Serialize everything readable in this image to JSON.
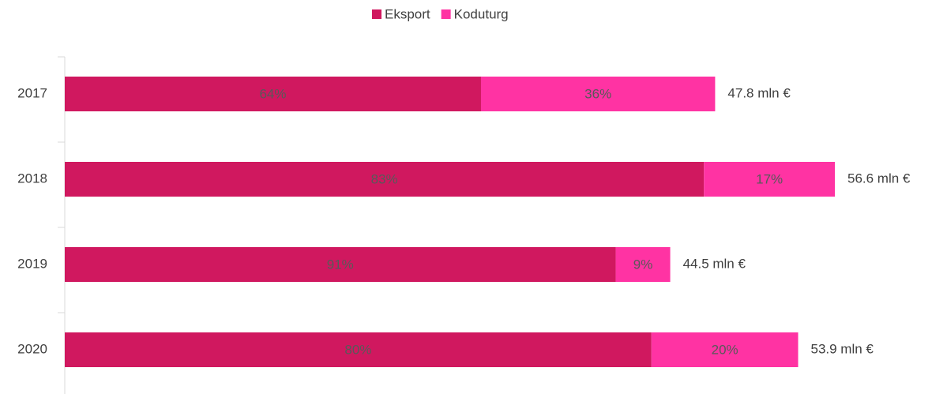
{
  "chart_data": {
    "type": "bar",
    "orientation": "horizontal",
    "stacked": true,
    "categories": [
      "2017",
      "2018",
      "2019",
      "2020"
    ],
    "series": [
      {
        "name": "Eksport",
        "color": "#d0185f",
        "values": [
          64,
          83,
          91,
          80
        ],
        "value_labels": [
          "64%",
          "83%",
          "91%",
          "80%"
        ]
      },
      {
        "name": "Koduturg",
        "color": "#ff33a3",
        "values": [
          36,
          17,
          9,
          20
        ],
        "value_labels": [
          "36%",
          "17%",
          "9%",
          "20%"
        ]
      }
    ],
    "totals": {
      "values": [
        47.8,
        56.6,
        44.5,
        53.9
      ],
      "value_labels": [
        "47.8 mln €",
        "56.6 mln €",
        "44.5 mln €",
        "53.9 mln €"
      ]
    },
    "legend": "top"
  }
}
